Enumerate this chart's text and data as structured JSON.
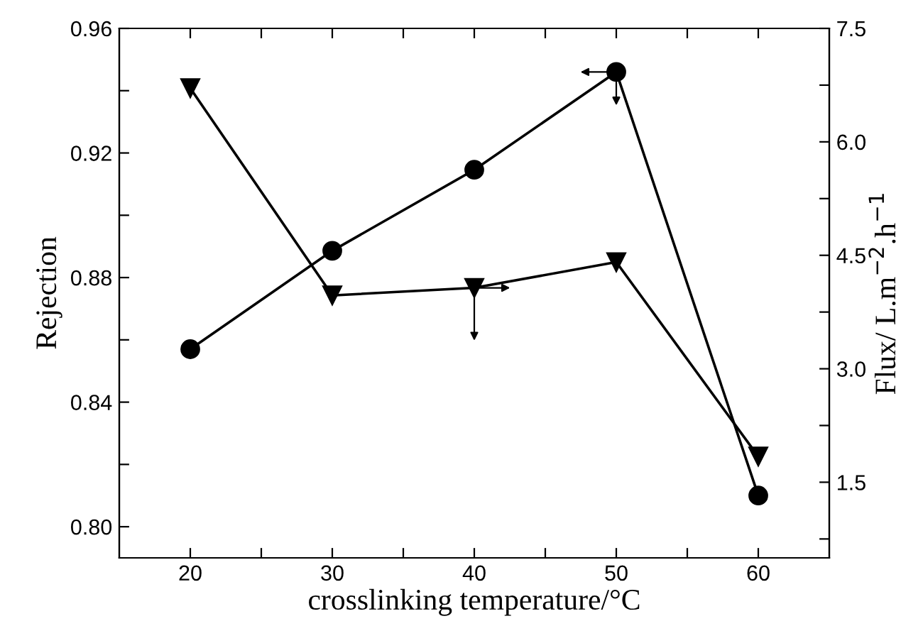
{
  "chart_data": {
    "type": "line",
    "xlabel": "crosslinking temperature/°C",
    "ylabel": "Rejection",
    "y2label": "Flux/ L.m$^{−2}$.h$^{−1}$",
    "x": [
      20,
      30,
      40,
      50,
      60
    ],
    "xlim": [
      15,
      65
    ],
    "xticks": [
      20,
      {
        "value": 25,
        "label": null
      },
      30,
      {
        "value": 35,
        "label": null
      },
      40,
      {
        "value": 45,
        "label": null
      },
      50,
      {
        "value": 55,
        "label": null
      },
      60
    ],
    "ylim": [
      0.79,
      0.96
    ],
    "yticks": [
      {
        "value": 0.8,
        "label": "0.80"
      },
      {
        "value": 0.82,
        "label": null
      },
      {
        "value": 0.84,
        "label": "0.84"
      },
      {
        "value": 0.86,
        "label": null
      },
      {
        "value": 0.88,
        "label": "0.88"
      },
      {
        "value": 0.9,
        "label": null
      },
      {
        "value": 0.92,
        "label": "0.92"
      },
      {
        "value": 0.94,
        "label": null
      },
      {
        "value": 0.96,
        "label": "0.96"
      }
    ],
    "y2lim": [
      0.5,
      7.5
    ],
    "y2ticks": [
      {
        "value": 0.75,
        "label": null
      },
      1.5,
      {
        "value": 2.25,
        "label": null
      },
      {
        "value": 3,
        "label": "3.0"
      },
      {
        "value": 3.75,
        "label": null
      },
      4.5,
      {
        "value": 5.25,
        "label": null
      },
      {
        "value": 6,
        "label": "6.0"
      },
      {
        "value": 6.75,
        "label": null
      },
      7.5
    ],
    "grid": false,
    "legend": false,
    "line_style": "solid",
    "series": [
      {
        "color": "#000000",
        "marker": "circle",
        "values": [
          0.857,
          0.8886,
          0.9146,
          0.946,
          0.81
        ]
      },
      {
        "color": "#000000",
        "marker": "triangle",
        "axis": "y2",
        "values": [
          6.71,
          3.97,
          4.07,
          4.41,
          1.84
        ]
      }
    ]
  }
}
